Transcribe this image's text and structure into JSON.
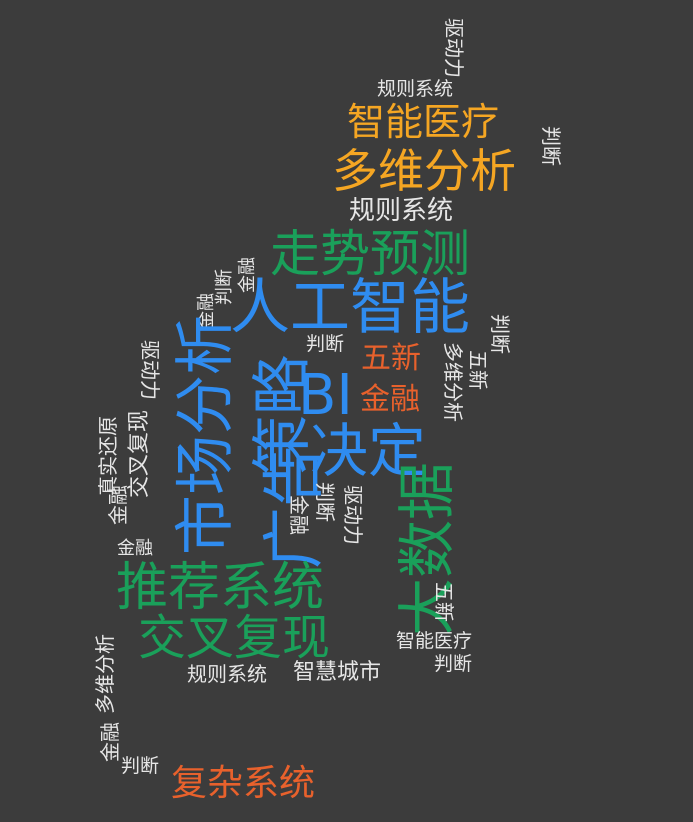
{
  "colors": {
    "background": "#3c3c3c",
    "white": "#e6e6e6",
    "orange": "#f5a623",
    "green": "#1aa05a",
    "blue": "#2f8cf0",
    "red": "#e8612c"
  },
  "words": [
    {
      "text": "驱动力",
      "color": "white"
    },
    {
      "text": "规则系统",
      "color": "white"
    },
    {
      "text": "智能医疗",
      "color": "orange"
    },
    {
      "text": "判断",
      "color": "white"
    },
    {
      "text": "多维分析",
      "color": "orange"
    },
    {
      "text": "规则系统",
      "color": "white"
    },
    {
      "text": "走势预测",
      "color": "green"
    },
    {
      "text": "金融",
      "color": "white"
    },
    {
      "text": "判断",
      "color": "white"
    },
    {
      "text": "金融",
      "color": "white"
    },
    {
      "text": "人工智能",
      "color": "blue"
    },
    {
      "text": "判断",
      "color": "white"
    },
    {
      "text": "判断",
      "color": "white"
    },
    {
      "text": "五新",
      "color": "red"
    },
    {
      "text": "五新",
      "color": "white"
    },
    {
      "text": "多维分析",
      "color": "white"
    },
    {
      "text": "驱动力",
      "color": "white"
    },
    {
      "text": "BI",
      "color": "blue"
    },
    {
      "text": "金融",
      "color": "red"
    },
    {
      "text": "市场分析",
      "color": "blue"
    },
    {
      "text": "策略",
      "color": "blue"
    },
    {
      "text": "决定",
      "color": "blue"
    },
    {
      "text": "交叉复现",
      "color": "white"
    },
    {
      "text": "真实还原",
      "color": "white"
    },
    {
      "text": "金融",
      "color": "white"
    },
    {
      "text": "广告",
      "color": "blue"
    },
    {
      "text": "判断",
      "color": "white"
    },
    {
      "text": "金融",
      "color": "white"
    },
    {
      "text": "驱动力",
      "color": "white"
    },
    {
      "text": "大数据",
      "color": "green"
    },
    {
      "text": "金融",
      "color": "white"
    },
    {
      "text": "推荐系统",
      "color": "green"
    },
    {
      "text": "五新",
      "color": "white"
    },
    {
      "text": "交叉复现",
      "color": "green"
    },
    {
      "text": "智能医疗",
      "color": "white"
    },
    {
      "text": "判断",
      "color": "white"
    },
    {
      "text": "多维分析",
      "color": "white"
    },
    {
      "text": "规则系统",
      "color": "white"
    },
    {
      "text": "智慧城市",
      "color": "white"
    },
    {
      "text": "金融",
      "color": "white"
    },
    {
      "text": "判断",
      "color": "white"
    },
    {
      "text": "复杂系统",
      "color": "red"
    }
  ]
}
